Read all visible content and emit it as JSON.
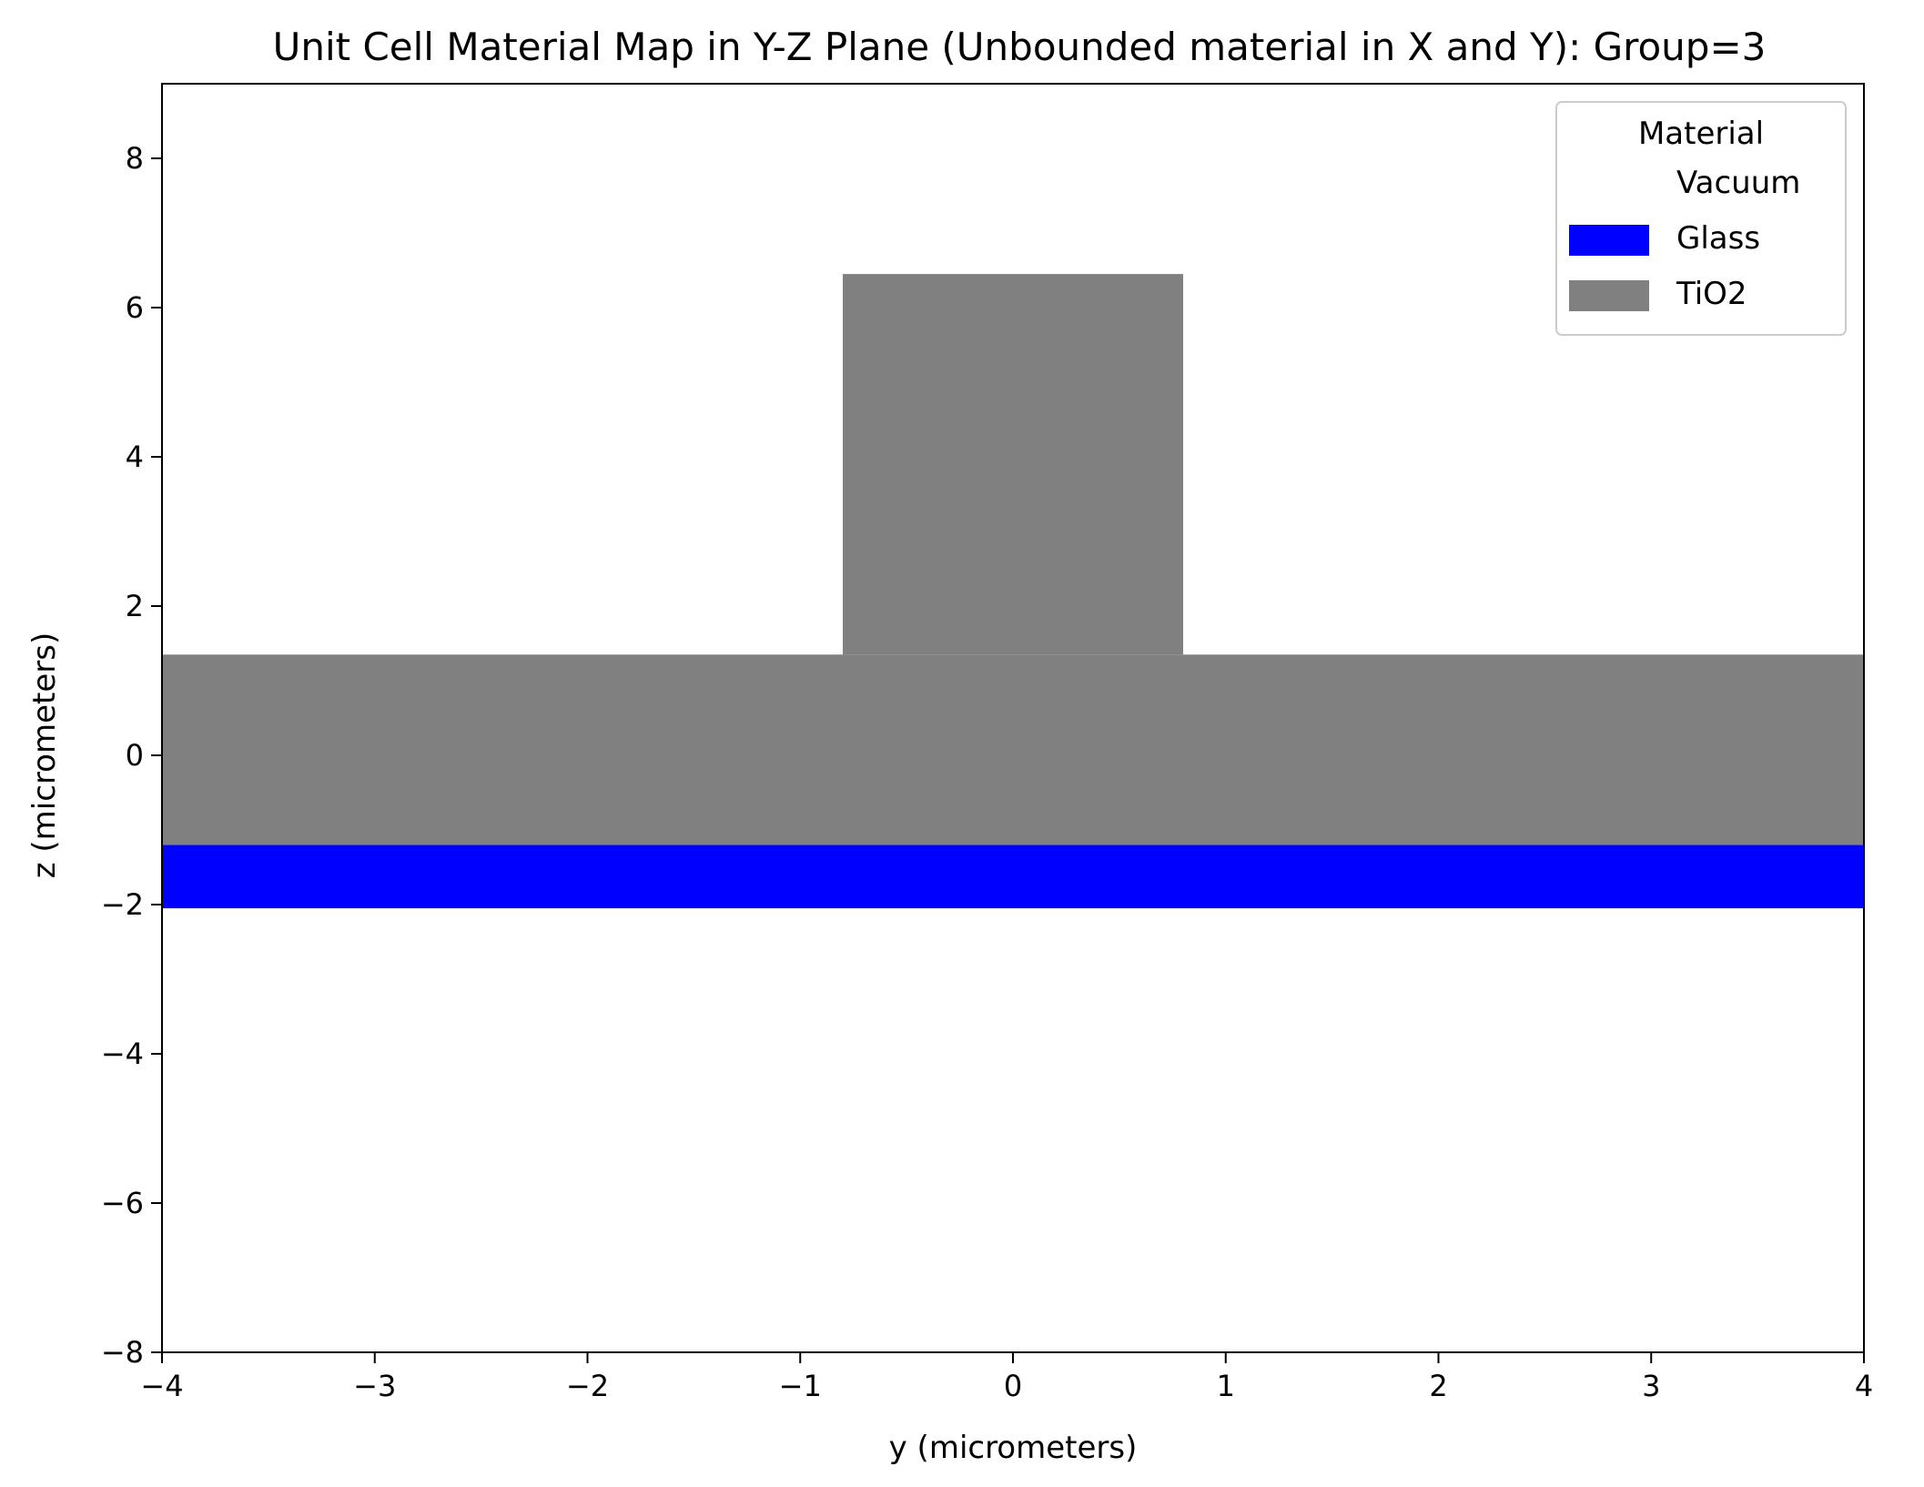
{
  "chart_data": {
    "type": "heatmap",
    "title": "Unit Cell Material Map in Y-Z Plane (Unbounded material in X and Y): Group=3",
    "xlabel": "y (micrometers)",
    "ylabel": "z (micrometers)",
    "xlim": [
      -4,
      4
    ],
    "ylim": [
      -8,
      9
    ],
    "xticks": [
      -4,
      -3,
      -2,
      -1,
      0,
      1,
      2,
      3,
      4
    ],
    "yticks": [
      -8,
      -6,
      -4,
      -2,
      0,
      2,
      4,
      6,
      8
    ],
    "xtick_labels": [
      "−4",
      "−3",
      "−2",
      "−1",
      "0",
      "1",
      "2",
      "3",
      "4"
    ],
    "ytick_labels": [
      "−8",
      "−6",
      "−4",
      "−2",
      "0",
      "2",
      "4",
      "6",
      "8"
    ],
    "grid": false,
    "legend": {
      "title": "Material",
      "placement": "top-right",
      "entries": [
        {
          "name": "Vacuum",
          "color": "#ffffff"
        },
        {
          "name": "Glass",
          "color": "#0000ff"
        },
        {
          "name": "TiO2",
          "color": "#808080"
        }
      ]
    },
    "regions": [
      {
        "material": "Glass",
        "color": "#0000ff",
        "y_range": [
          -4,
          4
        ],
        "z_range": [
          -2.05,
          -1.2
        ]
      },
      {
        "material": "TiO2",
        "color": "#808080",
        "y_range": [
          -4,
          4
        ],
        "z_range": [
          -1.2,
          1.35
        ]
      },
      {
        "material": "TiO2",
        "color": "#808080",
        "y_range": [
          -0.8,
          0.8
        ],
        "z_range": [
          1.35,
          6.45
        ]
      }
    ]
  }
}
